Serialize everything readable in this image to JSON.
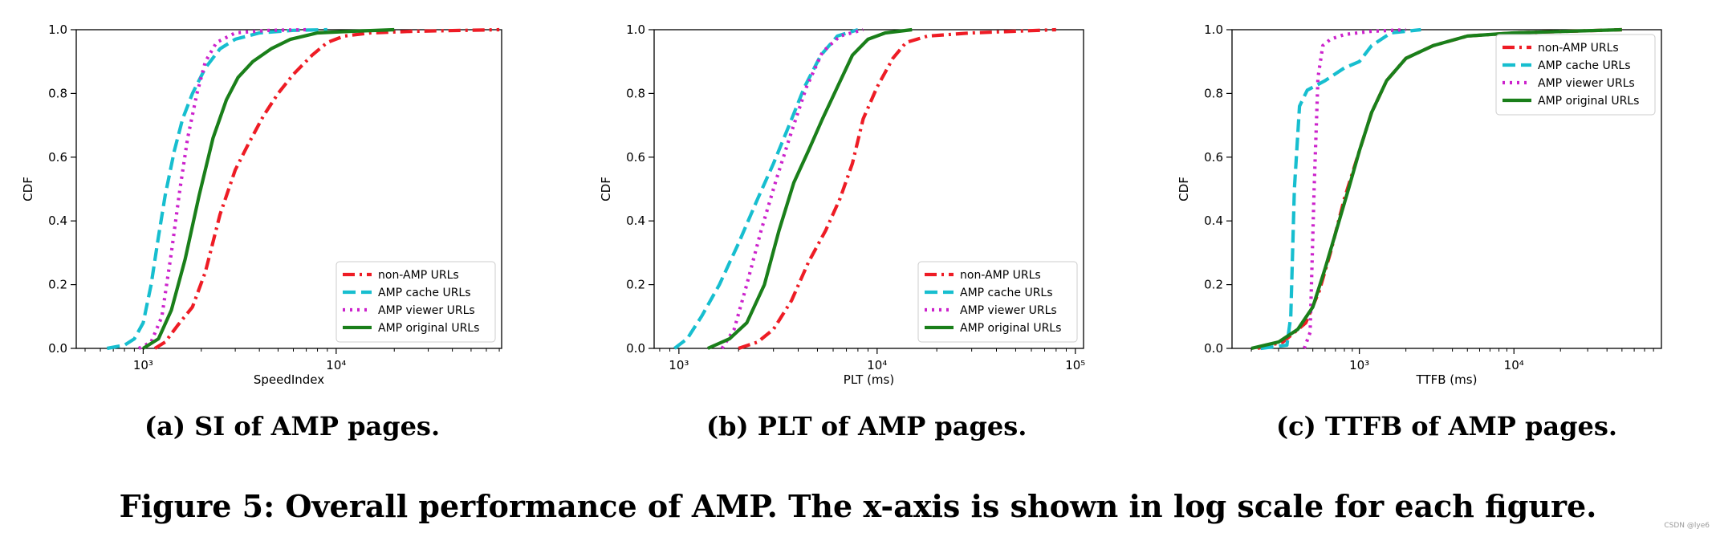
{
  "chart_data": [
    {
      "type": "line",
      "xscale": "log",
      "xlabel": "SpeedIndex",
      "ylabel": "CDF",
      "xlim": [
        450,
        72000
      ],
      "ylim": [
        0,
        1
      ],
      "xticks": [
        {
          "value": 1000,
          "label": "10³"
        },
        {
          "value": 10000,
          "label": "10⁴"
        }
      ],
      "yticks": [
        "0.0",
        "0.2",
        "0.4",
        "0.6",
        "0.8",
        "1.0"
      ],
      "legend_position": "lower right",
      "caption": "(a) SI of AMP pages.",
      "series": [
        {
          "name": "non-AMP URLs",
          "color": "#ee1c25",
          "dash": "dashdot",
          "points": [
            [
              1150,
              0
            ],
            [
              1300,
              0.02
            ],
            [
              1500,
              0.07
            ],
            [
              1800,
              0.13
            ],
            [
              2100,
              0.24
            ],
            [
              2500,
              0.42
            ],
            [
              3000,
              0.56
            ],
            [
              3500,
              0.64
            ],
            [
              4200,
              0.73
            ],
            [
              5000,
              0.8
            ],
            [
              6000,
              0.86
            ],
            [
              7500,
              0.92
            ],
            [
              9000,
              0.96
            ],
            [
              11000,
              0.98
            ],
            [
              15000,
              0.99
            ],
            [
              25000,
              0.995
            ],
            [
              70000,
              1.0
            ]
          ]
        },
        {
          "name": "AMP cache URLs",
          "color": "#17becf",
          "dash": "dashed",
          "points": [
            [
              650,
              0
            ],
            [
              800,
              0.01
            ],
            [
              900,
              0.03
            ],
            [
              1000,
              0.08
            ],
            [
              1100,
              0.2
            ],
            [
              1200,
              0.35
            ],
            [
              1300,
              0.48
            ],
            [
              1450,
              0.62
            ],
            [
              1600,
              0.72
            ],
            [
              1800,
              0.8
            ],
            [
              2100,
              0.88
            ],
            [
              2500,
              0.94
            ],
            [
              3000,
              0.97
            ],
            [
              4000,
              0.99
            ],
            [
              6000,
              0.998
            ],
            [
              9000,
              1.0
            ]
          ]
        },
        {
          "name": "AMP viewer URLs",
          "color": "#cc22cc",
          "dash": "dotted",
          "points": [
            [
              950,
              0
            ],
            [
              1100,
              0.02
            ],
            [
              1250,
              0.1
            ],
            [
              1400,
              0.3
            ],
            [
              1550,
              0.5
            ],
            [
              1700,
              0.66
            ],
            [
              1900,
              0.8
            ],
            [
              2100,
              0.9
            ],
            [
              2400,
              0.96
            ],
            [
              3000,
              0.99
            ],
            [
              4500,
              0.998
            ],
            [
              7000,
              1.0
            ]
          ]
        },
        {
          "name": "AMP original URLs",
          "color": "#1a7f1a",
          "dash": "solid",
          "points": [
            [
              1000,
              0
            ],
            [
              1200,
              0.03
            ],
            [
              1400,
              0.12
            ],
            [
              1650,
              0.28
            ],
            [
              1950,
              0.48
            ],
            [
              2300,
              0.66
            ],
            [
              2700,
              0.78
            ],
            [
              3100,
              0.85
            ],
            [
              3700,
              0.9
            ],
            [
              4600,
              0.94
            ],
            [
              5800,
              0.97
            ],
            [
              8000,
              0.99
            ],
            [
              12000,
              0.995
            ],
            [
              20000,
              1.0
            ]
          ]
        }
      ]
    },
    {
      "type": "line",
      "xscale": "log",
      "xlabel": "PLT (ms)",
      "ylabel": "CDF",
      "xlim": [
        750,
        110000
      ],
      "ylim": [
        0,
        1
      ],
      "xticks": [
        {
          "value": 1000,
          "label": "10³"
        },
        {
          "value": 10000,
          "label": "10⁴"
        },
        {
          "value": 100000,
          "label": "10⁵"
        }
      ],
      "yticks": [
        "0.0",
        "0.2",
        "0.4",
        "0.6",
        "0.8",
        "1.0"
      ],
      "legend_position": "lower right",
      "caption": "(b) PLT of AMP pages.",
      "series": [
        {
          "name": "non-AMP URLs",
          "color": "#ee1c25",
          "dash": "dashdot",
          "points": [
            [
              2000,
              0
            ],
            [
              2500,
              0.02
            ],
            [
              3000,
              0.06
            ],
            [
              3700,
              0.15
            ],
            [
              4500,
              0.27
            ],
            [
              5500,
              0.37
            ],
            [
              6500,
              0.47
            ],
            [
              7500,
              0.58
            ],
            [
              8500,
              0.72
            ],
            [
              10000,
              0.82
            ],
            [
              12000,
              0.91
            ],
            [
              14000,
              0.96
            ],
            [
              18000,
              0.98
            ],
            [
              30000,
              0.99
            ],
            [
              80000,
              1.0
            ]
          ]
        },
        {
          "name": "AMP cache URLs",
          "color": "#17becf",
          "dash": "dashed",
          "points": [
            [
              950,
              0
            ],
            [
              1100,
              0.03
            ],
            [
              1300,
              0.1
            ],
            [
              1600,
              0.2
            ],
            [
              2000,
              0.33
            ],
            [
              2500,
              0.47
            ],
            [
              3000,
              0.58
            ],
            [
              3600,
              0.7
            ],
            [
              4300,
              0.82
            ],
            [
              5200,
              0.92
            ],
            [
              6300,
              0.98
            ],
            [
              8000,
              1.0
            ]
          ]
        },
        {
          "name": "AMP viewer URLs",
          "color": "#cc22cc",
          "dash": "dotted",
          "points": [
            [
              1650,
              0
            ],
            [
              1900,
              0.06
            ],
            [
              2200,
              0.2
            ],
            [
              2600,
              0.37
            ],
            [
              3100,
              0.53
            ],
            [
              3700,
              0.68
            ],
            [
              4400,
              0.82
            ],
            [
              5300,
              0.93
            ],
            [
              6500,
              0.98
            ],
            [
              8500,
              1.0
            ]
          ]
        },
        {
          "name": "AMP original URLs",
          "color": "#1a7f1a",
          "dash": "solid",
          "points": [
            [
              1400,
              0
            ],
            [
              1800,
              0.03
            ],
            [
              2200,
              0.08
            ],
            [
              2700,
              0.2
            ],
            [
              3200,
              0.37
            ],
            [
              3800,
              0.52
            ],
            [
              4500,
              0.62
            ],
            [
              5300,
              0.72
            ],
            [
              6300,
              0.82
            ],
            [
              7500,
              0.92
            ],
            [
              9000,
              0.97
            ],
            [
              11000,
              0.99
            ],
            [
              15000,
              1.0
            ]
          ]
        }
      ]
    },
    {
      "type": "line",
      "xscale": "log",
      "xlabel": "TTFB (ms)",
      "ylabel": "CDF",
      "xlim": [
        150,
        90000
      ],
      "ylim": [
        0,
        1
      ],
      "xticks": [
        {
          "value": 1000,
          "label": "10³"
        },
        {
          "value": 10000,
          "label": "10⁴"
        }
      ],
      "yticks": [
        "0.0",
        "0.2",
        "0.4",
        "0.6",
        "0.8",
        "1.0"
      ],
      "legend_position": "upper right",
      "caption": "(c) TTFB of AMP pages.",
      "series": [
        {
          "name": "non-AMP URLs",
          "color": "#ee1c25",
          "dash": "dashdot",
          "points": [
            [
              220,
              0
            ],
            [
              320,
              0.02
            ],
            [
              450,
              0.08
            ],
            [
              550,
              0.18
            ],
            [
              650,
              0.3
            ],
            [
              800,
              0.47
            ],
            [
              1000,
              0.62
            ],
            [
              1200,
              0.74
            ],
            [
              1500,
              0.84
            ],
            [
              2000,
              0.91
            ],
            [
              3000,
              0.95
            ],
            [
              5000,
              0.98
            ],
            [
              10000,
              0.99
            ],
            [
              50000,
              1.0
            ]
          ]
        },
        {
          "name": "AMP cache URLs",
          "color": "#17becf",
          "dash": "dashed",
          "points": [
            [
              230,
              0
            ],
            [
              340,
              0.01
            ],
            [
              360,
              0.1
            ],
            [
              380,
              0.5
            ],
            [
              410,
              0.76
            ],
            [
              460,
              0.81
            ],
            [
              600,
              0.84
            ],
            [
              800,
              0.88
            ],
            [
              1000,
              0.9
            ],
            [
              1200,
              0.95
            ],
            [
              1600,
              0.99
            ],
            [
              2500,
              1.0
            ]
          ]
        },
        {
          "name": "AMP viewer URLs",
          "color": "#cc22cc",
          "dash": "dotted",
          "points": [
            [
              440,
              0
            ],
            [
              480,
              0.05
            ],
            [
              510,
              0.5
            ],
            [
              540,
              0.85
            ],
            [
              580,
              0.95
            ],
            [
              650,
              0.97
            ],
            [
              800,
              0.985
            ],
            [
              1200,
              0.995
            ],
            [
              2000,
              1.0
            ]
          ]
        },
        {
          "name": "AMP original URLs",
          "color": "#1a7f1a",
          "dash": "solid",
          "points": [
            [
              200,
              0
            ],
            [
              300,
              0.02
            ],
            [
              400,
              0.06
            ],
            [
              500,
              0.13
            ],
            [
              600,
              0.25
            ],
            [
              700,
              0.36
            ],
            [
              850,
              0.5
            ],
            [
              1000,
              0.62
            ],
            [
              1200,
              0.74
            ],
            [
              1500,
              0.84
            ],
            [
              2000,
              0.91
            ],
            [
              3000,
              0.95
            ],
            [
              5000,
              0.98
            ],
            [
              10000,
              0.99
            ],
            [
              50000,
              1.0
            ]
          ]
        }
      ]
    }
  ],
  "figure_caption": "Figure 5: Overall performance of AMP. The x-axis is shown in log scale for each figure.",
  "watermark": "CSDN @lye6"
}
